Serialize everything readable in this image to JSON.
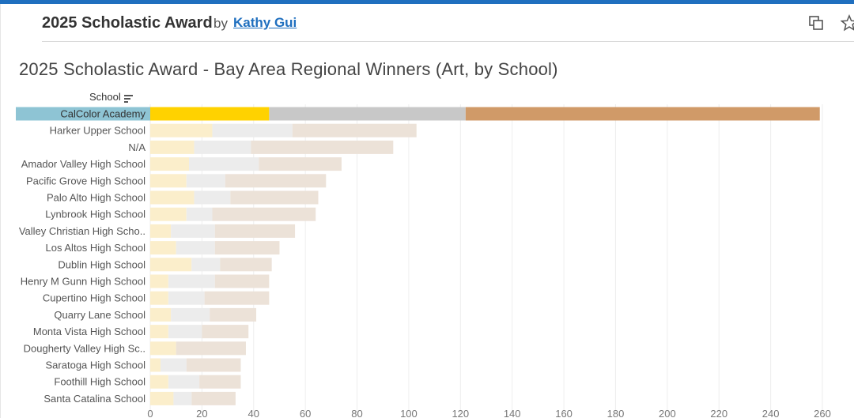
{
  "header": {
    "title": "2025 Scholastic Award",
    "by": "by",
    "author": "Kathy Gui"
  },
  "icons": {
    "copy": "copy-icon",
    "favorite": "star-icon",
    "sort": "sort-descending-icon"
  },
  "viz": {
    "title": "2025 Scholastic Award - Bay Area Regional Winners (Art, by School)",
    "column_header": "School"
  },
  "colors": {
    "gold": "#ffd200",
    "silver": "#c8c8c8",
    "honorable": "#d09a68",
    "gold_faded": "#fbeecb",
    "silver_faded": "#ececec",
    "honorable_faded": "#ece2d8",
    "highlight_label_bg": "#8ec4d4"
  },
  "chart_data": {
    "type": "bar",
    "orientation": "horizontal",
    "stacked": true,
    "selected_category": "CalColor Academy",
    "categories": [
      "CalColor Academy",
      "Harker Upper School",
      "N/A",
      "Amador Valley High School",
      "Pacific Grove High School",
      "Palo Alto High School",
      "Lynbrook High School",
      "Valley Christian High Scho..",
      "Los Altos High School",
      "Dublin High School",
      "Henry M Gunn High School",
      "Cupertino High School",
      "Quarry Lane School",
      "Monta Vista High School",
      "Dougherty Valley High Sc..",
      "Saratoga High School",
      "Foothill High School",
      "Santa Catalina School"
    ],
    "series": [
      {
        "values": [
          46,
          24,
          17,
          15,
          14,
          17,
          14,
          8,
          10,
          16,
          7,
          7,
          8,
          7,
          10,
          4,
          7,
          9
        ],
        "color_role": "gold"
      },
      {
        "values": [
          76,
          31,
          22,
          27,
          15,
          14,
          10,
          17,
          15,
          11,
          18,
          14,
          15,
          13,
          0,
          10,
          12,
          7
        ],
        "color_role": "silver"
      },
      {
        "values": [
          137,
          48,
          55,
          32,
          39,
          34,
          40,
          31,
          25,
          20,
          21,
          25,
          18,
          18,
          27,
          21,
          16,
          17
        ],
        "color_role": "honorable"
      }
    ],
    "xlim": [
      0,
      260
    ],
    "xticks": [
      0,
      20,
      40,
      60,
      80,
      100,
      120,
      140,
      160,
      180,
      200,
      220,
      240,
      260
    ],
    "grid": true
  }
}
